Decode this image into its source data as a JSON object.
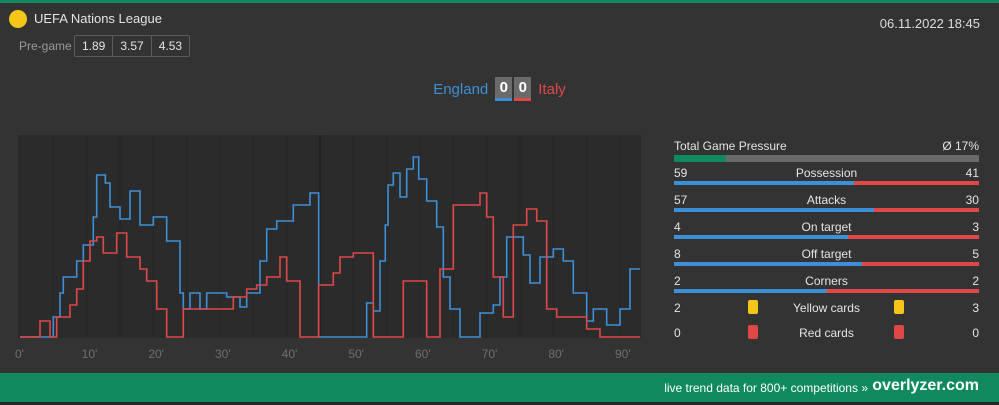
{
  "league": {
    "name": "UEFA Nations League",
    "icon": "competition-dot-icon",
    "icon_color": "#f5c518"
  },
  "datetime": "06.11.2022 18:45",
  "pregame": {
    "label": "Pre-game",
    "odds": [
      "1.89",
      "3.57",
      "4.53"
    ]
  },
  "match": {
    "home": {
      "name": "England",
      "score": "0",
      "color": "#3d8fd8"
    },
    "away": {
      "name": "Italy",
      "score": "0",
      "color": "#e04848"
    }
  },
  "stats": {
    "pressure": {
      "label": "Total Game Pressure",
      "value": "Ø 17%",
      "fraction": 0.17,
      "color": "#0f8a5f"
    },
    "rows": [
      {
        "label": "Possession",
        "home": "59",
        "away": "41"
      },
      {
        "label": "Attacks",
        "home": "57",
        "away": "30"
      },
      {
        "label": "On target",
        "home": "4",
        "away": "3"
      },
      {
        "label": "Off target",
        "home": "8",
        "away": "5"
      },
      {
        "label": "Corners",
        "home": "2",
        "away": "2"
      }
    ],
    "cards": [
      {
        "label": "Yellow cards",
        "home": "2",
        "away": "3",
        "color": "#f5c518",
        "icon": "yellow-card-icon"
      },
      {
        "label": "Red cards",
        "home": "0",
        "away": "0",
        "color": "#e04848",
        "icon": "red-card-icon"
      }
    ]
  },
  "footer": {
    "text": "live trend data for 800+ competitions »",
    "brand": "overlyzer.com"
  },
  "chart_data": {
    "type": "line",
    "xlabel": "",
    "ylabel": "",
    "x_ticks": [
      "0'",
      "10'",
      "20'",
      "30'",
      "40'",
      "50'",
      "60'",
      "70'",
      "80'",
      "90'"
    ],
    "xlim": [
      0,
      93
    ],
    "ylim": [
      0,
      100
    ],
    "grid": true,
    "series": [
      {
        "color": "#3d8fd8",
        "points": [
          [
            0,
            0
          ],
          [
            5,
            0
          ],
          [
            5,
            10
          ],
          [
            6,
            10
          ],
          [
            6,
            22
          ],
          [
            6.5,
            22
          ],
          [
            6.5,
            30
          ],
          [
            8.5,
            30
          ],
          [
            8.5,
            38
          ],
          [
            9.5,
            38
          ],
          [
            9.5,
            46
          ],
          [
            11,
            46
          ],
          [
            11,
            60
          ],
          [
            11.5,
            60
          ],
          [
            11.5,
            81
          ],
          [
            12.8,
            81
          ],
          [
            12.8,
            77
          ],
          [
            13.5,
            77
          ],
          [
            13.5,
            65
          ],
          [
            15,
            65
          ],
          [
            15,
            59
          ],
          [
            16.5,
            59
          ],
          [
            16.5,
            73
          ],
          [
            18,
            73
          ],
          [
            18,
            56
          ],
          [
            20,
            56
          ],
          [
            20,
            60
          ],
          [
            22,
            60
          ],
          [
            22,
            48
          ],
          [
            24,
            48
          ],
          [
            24,
            22
          ],
          [
            24.5,
            22
          ],
          [
            24.5,
            14
          ],
          [
            25.5,
            14
          ],
          [
            25.5,
            22
          ],
          [
            27,
            22
          ],
          [
            27,
            14
          ],
          [
            28,
            14
          ],
          [
            28,
            22
          ],
          [
            31,
            22
          ],
          [
            31,
            20
          ],
          [
            33,
            20
          ],
          [
            33,
            15
          ],
          [
            34,
            15
          ],
          [
            34,
            22
          ],
          [
            36,
            22
          ],
          [
            36,
            38
          ],
          [
            37,
            38
          ],
          [
            37,
            54
          ],
          [
            38.5,
            54
          ],
          [
            38.5,
            58
          ],
          [
            41,
            58
          ],
          [
            41,
            66
          ],
          [
            43.5,
            66
          ],
          [
            43.5,
            72
          ],
          [
            44.8,
            72
          ],
          [
            44.8,
            0
          ],
          [
            52,
            0
          ],
          [
            52,
            17
          ],
          [
            53,
            17
          ],
          [
            53,
            13
          ],
          [
            54,
            13
          ],
          [
            54,
            38
          ],
          [
            54.8,
            38
          ],
          [
            54.8,
            56
          ],
          [
            55.2,
            56
          ],
          [
            55.2,
            76
          ],
          [
            56,
            76
          ],
          [
            56,
            82
          ],
          [
            57,
            82
          ],
          [
            57,
            70
          ],
          [
            58,
            70
          ],
          [
            58,
            84
          ],
          [
            59,
            84
          ],
          [
            59,
            90
          ],
          [
            59.8,
            90
          ],
          [
            59.8,
            79
          ],
          [
            61,
            79
          ],
          [
            61,
            68
          ],
          [
            62.5,
            68
          ],
          [
            62.5,
            55
          ],
          [
            63.5,
            55
          ],
          [
            63.5,
            30
          ],
          [
            64.5,
            30
          ],
          [
            64.5,
            14
          ],
          [
            66,
            14
          ],
          [
            66,
            0
          ],
          [
            69,
            0
          ],
          [
            69,
            12
          ],
          [
            71,
            12
          ],
          [
            71,
            16
          ],
          [
            72,
            16
          ],
          [
            72,
            30
          ],
          [
            73,
            30
          ],
          [
            73,
            50
          ],
          [
            75.5,
            50
          ],
          [
            75.5,
            41
          ],
          [
            76.5,
            41
          ],
          [
            76.5,
            27
          ],
          [
            78,
            27
          ],
          [
            78,
            40
          ],
          [
            80,
            40
          ],
          [
            80,
            44
          ],
          [
            81.5,
            44
          ],
          [
            81.5,
            38
          ],
          [
            83,
            38
          ],
          [
            83,
            22
          ],
          [
            85,
            22
          ],
          [
            85,
            8
          ],
          [
            86,
            8
          ],
          [
            86,
            14
          ],
          [
            88,
            14
          ],
          [
            88,
            6
          ],
          [
            90,
            6
          ],
          [
            90,
            14
          ],
          [
            91.5,
            14
          ],
          [
            91.5,
            34
          ],
          [
            93,
            34
          ]
        ]
      },
      {
        "color": "#e04848",
        "points": [
          [
            0,
            0
          ],
          [
            3,
            0
          ],
          [
            3,
            8
          ],
          [
            4.5,
            8
          ],
          [
            4.5,
            0
          ],
          [
            5.5,
            0
          ],
          [
            5.5,
            10
          ],
          [
            7.5,
            10
          ],
          [
            7.5,
            16
          ],
          [
            8.5,
            16
          ],
          [
            8.5,
            24
          ],
          [
            9.5,
            24
          ],
          [
            9.5,
            38
          ],
          [
            10.5,
            38
          ],
          [
            10.5,
            48
          ],
          [
            11.5,
            48
          ],
          [
            11.5,
            50
          ],
          [
            12.5,
            50
          ],
          [
            12.5,
            42
          ],
          [
            14.5,
            42
          ],
          [
            14.5,
            52
          ],
          [
            16,
            52
          ],
          [
            16,
            40
          ],
          [
            18,
            40
          ],
          [
            18,
            34
          ],
          [
            19,
            34
          ],
          [
            19,
            28
          ],
          [
            20.5,
            28
          ],
          [
            20.5,
            14
          ],
          [
            22,
            14
          ],
          [
            22,
            0
          ],
          [
            24.5,
            0
          ],
          [
            24.5,
            14
          ],
          [
            32,
            14
          ],
          [
            32,
            20
          ],
          [
            34,
            20
          ],
          [
            34,
            24
          ],
          [
            35.5,
            24
          ],
          [
            35.5,
            26
          ],
          [
            37,
            26
          ],
          [
            37,
            30
          ],
          [
            39,
            30
          ],
          [
            39,
            40
          ],
          [
            40,
            40
          ],
          [
            40,
            28
          ],
          [
            42,
            28
          ],
          [
            42,
            0
          ],
          [
            44.8,
            0
          ],
          [
            44.8,
            26
          ],
          [
            47,
            26
          ],
          [
            47,
            32
          ],
          [
            48,
            32
          ],
          [
            48,
            40
          ],
          [
            50,
            40
          ],
          [
            50,
            42
          ],
          [
            53,
            42
          ],
          [
            53,
            0
          ],
          [
            57.5,
            0
          ],
          [
            57.5,
            28
          ],
          [
            61,
            28
          ],
          [
            61,
            0
          ],
          [
            63,
            0
          ],
          [
            63,
            34
          ],
          [
            65,
            34
          ],
          [
            65,
            66
          ],
          [
            69,
            66
          ],
          [
            69,
            72
          ],
          [
            70,
            72
          ],
          [
            70,
            60
          ],
          [
            71,
            60
          ],
          [
            71,
            30
          ],
          [
            72.5,
            30
          ],
          [
            72.5,
            10
          ],
          [
            74,
            10
          ],
          [
            74,
            56
          ],
          [
            76,
            56
          ],
          [
            76,
            64
          ],
          [
            77.5,
            64
          ],
          [
            77.5,
            58
          ],
          [
            79,
            58
          ],
          [
            79,
            14
          ],
          [
            80.5,
            14
          ],
          [
            80.5,
            10
          ],
          [
            85,
            10
          ],
          [
            85,
            4
          ],
          [
            87,
            4
          ],
          [
            87,
            0
          ],
          [
            93,
            0
          ]
        ]
      }
    ]
  }
}
